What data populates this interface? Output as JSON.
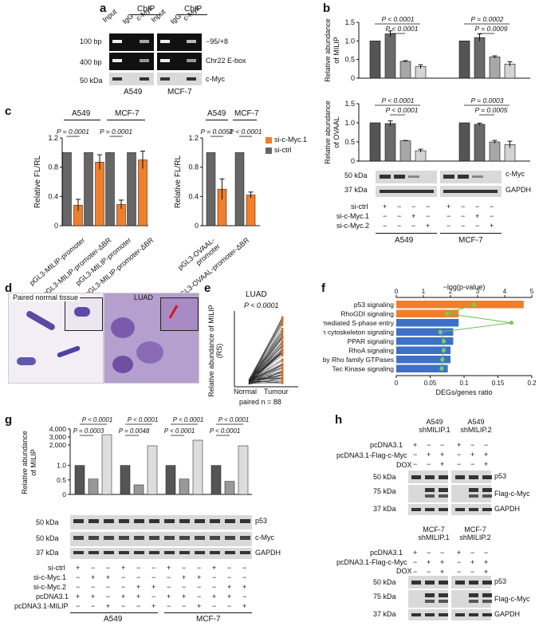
{
  "panel_letters": [
    "a",
    "b",
    "c",
    "d",
    "e",
    "f",
    "g",
    "h"
  ],
  "panel_a": {
    "chip_label": "ChIP",
    "lane_labels": [
      "Input",
      "IgG",
      "c-Myc",
      "Input",
      "IgG",
      "c-Myc"
    ],
    "row_size_labels": [
      "100 bp",
      "400 bp",
      "50 kDa"
    ],
    "row_names": [
      "−95/+8",
      "Chr22 E-box",
      "c-Myc"
    ],
    "cell_lines": [
      "A549",
      "MCF-7"
    ]
  },
  "chart_data": [
    {
      "id": "b-top",
      "type": "bar",
      "ylabel": "Relative abundance of MILIP",
      "ylim": [
        0,
        1.5
      ],
      "yticks": [
        "0",
        "0.5",
        "1.0",
        "1.5"
      ],
      "groups": [
        "A549",
        "MCF-7"
      ],
      "categories": [
        "si-ctrl",
        "si-c-Myc.1",
        "si-c-Myc.2",
        "ctrl"
      ],
      "series": [
        {
          "name": "A549",
          "values": [
            1.0,
            1.19,
            0.45,
            0.31
          ],
          "errors": [
            0.0,
            0.08,
            0.02,
            0.05
          ]
        },
        {
          "name": "MCF-7",
          "values": [
            1.0,
            1.09,
            0.57,
            0.38
          ],
          "errors": [
            0.0,
            0.1,
            0.03,
            0.06
          ]
        }
      ],
      "pvalues": [
        "P < 0.0001",
        "P < 0.0001",
        "P = 0.0002",
        "P = 0.0009"
      ]
    },
    {
      "id": "b-bottom",
      "type": "bar",
      "ylabel": "Relative abundance of OVAAL",
      "ylim": [
        0,
        1.5
      ],
      "yticks": [
        "0",
        "0.5",
        "1.0",
        "1.5"
      ],
      "series": [
        {
          "name": "A549",
          "values": [
            1.0,
            0.98,
            0.53,
            0.27
          ],
          "errors": [
            0.0,
            0.07,
            0.01,
            0.04
          ]
        },
        {
          "name": "MCF-7",
          "values": [
            1.0,
            0.96,
            0.5,
            0.43
          ],
          "errors": [
            0.0,
            0.03,
            0.04,
            0.09
          ]
        }
      ],
      "pvalues": [
        "P < 0.0001",
        "P < 0.0001",
        "P = 0.0003",
        "P = 0.0005"
      ]
    },
    {
      "id": "c-left",
      "type": "bar",
      "ylabel": "Relative FL/RL",
      "ylim": [
        0,
        1.2
      ],
      "yticks": [
        "0",
        "0.4",
        "0.8",
        "1.2"
      ],
      "cell_lines": [
        "A549",
        "MCF-7"
      ],
      "categories": [
        "pGL3-MILIP-promoter",
        "pGL3-MILIP-promoter-ΔBR",
        "pGL3-MILIP-promoter",
        "pGL3-MILIP-promoter-ΔBR"
      ],
      "series": [
        {
          "name": "si-ctrl",
          "values": [
            1.0,
            1.0,
            1.0,
            1.0
          ]
        },
        {
          "name": "si-c-Myc.1",
          "values": [
            0.28,
            0.87,
            0.29,
            0.9
          ],
          "errors": [
            0.08,
            0.1,
            0.06,
            0.12
          ]
        }
      ],
      "pvalues": [
        "P = 0.0001",
        "P = 0.0001"
      ]
    },
    {
      "id": "c-right",
      "type": "bar",
      "ylabel": "Relative FL/RL",
      "ylim": [
        0,
        1.2
      ],
      "yticks": [
        "0",
        "0.4",
        "0.8",
        "1.2"
      ],
      "cell_lines": [
        "A549",
        "MCF-7"
      ],
      "categories": [
        "pGL3-OVAAL-promoter",
        "pGL3-OVAAL-promoter-ΔBR"
      ],
      "series": [
        {
          "name": "si-ctrl",
          "values": [
            1.0,
            1.0
          ]
        },
        {
          "name": "si-c-Myc.1",
          "values": [
            0.5,
            0.42
          ],
          "errors": [
            0.14,
            0.04
          ]
        }
      ],
      "pvalues": [
        "P = 0.0051",
        "P < 0.0001"
      ],
      "legend": [
        "si-c-Myc.1",
        "si-ctrl"
      ]
    },
    {
      "id": "e",
      "type": "scatter",
      "title": "LUAD",
      "ylabel": "Relative abundance of MILIP (RS)",
      "x": [
        "Normal",
        "Tumour"
      ],
      "pvalue": "P < 0.0001",
      "note": "paired n = 88"
    },
    {
      "id": "f",
      "type": "bar",
      "x_top_label": "−log(p-value)",
      "x_top_ticks": [
        "0",
        "1",
        "2",
        "3",
        "4",
        "5"
      ],
      "x_bottom_label": "DEGs/genes ratio",
      "x_bottom_ticks": [
        "0",
        "0.05",
        "0.1",
        "0.15",
        "0.2"
      ],
      "categories": [
        "p53 signaling",
        "RhoGDI signaling",
        "Estrogen-mediated S-phase entry",
        "Actin cytoskeleton signaling",
        "PPAR signaling",
        "RhoA signaling",
        "Signaling by Rho family GTPases",
        "Tec Kinase signaling"
      ],
      "values": [
        4.7,
        2.3,
        2.3,
        2.1,
        2.1,
        2.0,
        2.0,
        1.9
      ],
      "ratios": [
        0.115,
        0.075,
        0.17,
        0.065,
        0.07,
        0.07,
        0.068,
        0.067
      ],
      "colors": [
        "#f07f2b",
        "#f07f2b",
        "#3f70c8",
        "#3f70c8",
        "#3f70c8",
        "#3f70c8",
        "#3f70c8",
        "#3f70c8"
      ]
    },
    {
      "id": "g",
      "type": "bar",
      "ylabel": "Relative abundance of MILIP",
      "yticks": [
        "0",
        "0.5",
        "1.0",
        "2,000",
        "3,000",
        "4,000"
      ],
      "series": [
        {
          "name": "A549 si-c-Myc.1",
          "values": [
            1.0,
            0.53,
            3300
          ]
        },
        {
          "name": "A549 si-c-Myc.2",
          "values": [
            1.0,
            0.33,
            1900
          ]
        },
        {
          "name": "MCF-7 si-c-Myc.1",
          "values": [
            1.0,
            0.53,
            2600
          ]
        },
        {
          "name": "MCF-7 si-c-Myc.2",
          "values": [
            1.0,
            0.45,
            1900
          ]
        }
      ],
      "pvalues": [
        "P < 0.0001",
        "P = 0.0003",
        "P < 0.0001",
        "P = 0.0048",
        "P < 0.0001",
        "P < 0.0001",
        "P < 0.0001",
        "P < 0.0001"
      ]
    }
  ],
  "panel_b": {
    "blot_sizes": [
      "50 kDa",
      "37 kDa"
    ],
    "blot_names": [
      "c-Myc",
      "GAPDH"
    ],
    "rows": [
      "si-ctrl",
      "si-c-Myc.1",
      "si-c-Myc.2"
    ],
    "marks": [
      [
        "+",
        "−",
        "−",
        "−"
      ],
      [
        "−",
        "−",
        "+",
        "−"
      ],
      [
        "−",
        "−",
        "−",
        "+"
      ]
    ],
    "cell_lines": [
      "A549",
      "MCF-7"
    ]
  },
  "panel_c": {
    "cell_lines": [
      "A549",
      "MCF-7"
    ],
    "left_labels": [
      "pGL3-MILIP-promoter",
      "pGL3-MILIP-promoter-ΔBR",
      "pGL3-MILIP-promoter",
      "pGL3-MILIP-promoter-ΔBR"
    ],
    "right_labels": [
      "pGL3-OVAAL-promoter",
      "pGL3-OVAAL-promoter-ΔBR"
    ],
    "legend": [
      "si-c-Myc.1",
      "si-ctrl"
    ]
  },
  "panel_d": {
    "titles": [
      "Paired normal tissue",
      "LUAD"
    ]
  },
  "panel_e": {
    "title": "LUAD",
    "pvalue": "P < 0.0001",
    "ylabel": "Relative abundance of MILIP (RS)",
    "xlabels": [
      "Normal",
      "Tumour"
    ],
    "note": "paired n = 88"
  },
  "panel_g": {
    "blot_sizes": [
      "50 kDa",
      "50 kDa",
      "37 kDa"
    ],
    "blot_names": [
      "p53",
      "c-Myc",
      "GAPDH"
    ],
    "rows": [
      "si-ctrl",
      "si-c-Myc.1",
      "si-c-Myc.2",
      "pcDNA3.1",
      "pcDNA3.1-MILIP"
    ],
    "marks": [
      [
        "+",
        "−",
        "−",
        "+",
        "−",
        "−",
        "+",
        "−",
        "−",
        "+",
        "−",
        "−"
      ],
      [
        "−",
        "+",
        "+",
        "−",
        "−",
        "−",
        "−",
        "+",
        "+",
        "−",
        "−",
        "−"
      ],
      [
        "−",
        "−",
        "−",
        "−",
        "+",
        "+",
        "−",
        "−",
        "−",
        "−",
        "+",
        "+"
      ],
      [
        "+",
        "+",
        "−",
        "+",
        "+",
        "−",
        "+",
        "+",
        "−",
        "+",
        "+",
        "−"
      ],
      [
        "−",
        "−",
        "+",
        "−",
        "−",
        "+",
        "−",
        "−",
        "+",
        "−",
        "−",
        "+"
      ]
    ],
    "cell_lines": [
      "A549",
      "MCF-7"
    ]
  },
  "panel_h": {
    "top_headers": [
      "A549 shMILIP.1",
      "A549 shMILIP.2"
    ],
    "bottom_headers": [
      "MCF-7 shMILIP.1",
      "MCF-7 shMILIP.2"
    ],
    "rows": [
      "pcDNA3.1",
      "pcDNA3.1-Flag-c-Myc",
      "DOX"
    ],
    "marks": [
      [
        "+",
        "−",
        "−",
        "+",
        "−",
        "−"
      ],
      [
        "−",
        "+",
        "+",
        "−",
        "+",
        "+"
      ],
      [
        "−",
        "−",
        "+",
        "−",
        "−",
        "+"
      ]
    ],
    "blot_sizes": [
      "50 kDa",
      "75 kDa",
      "37 kDa"
    ],
    "blot_names": [
      "p53",
      "Flag-c-Myc",
      "GAPDH"
    ]
  }
}
